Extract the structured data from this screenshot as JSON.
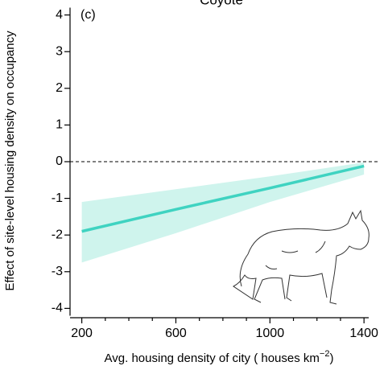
{
  "chart_data": {
    "type": "line",
    "title": "Coyote",
    "panel_label": "(c)",
    "ylabel": "Effect of site-level housing density on occupancy",
    "xlabel": [
      "Avg. housing density of city ( houses  km",
      "−2",
      ")"
    ],
    "x": [
      200,
      600,
      1000,
      1400
    ],
    "series": [
      {
        "color": "#3fd3c1",
        "values": [
          -1.9,
          -1.3,
          -0.72,
          -0.12
        ]
      }
    ],
    "band": {
      "color": "#cff4ed",
      "upper": [
        -1.1,
        -0.75,
        -0.4,
        -0.02
      ],
      "lower": [
        -2.75,
        -1.95,
        -1.1,
        -0.35
      ]
    },
    "reference_line": 0,
    "xlim": [
      150,
      1420
    ],
    "ylim": [
      -4.2,
      4.2
    ],
    "xticks": [
      200,
      600,
      1000,
      1400
    ],
    "xticks_minor": [
      300,
      400,
      500,
      700,
      800,
      900,
      1100,
      1200,
      1300
    ],
    "yticks": [
      -4,
      -3,
      -2,
      -1,
      0,
      1,
      2,
      3,
      4
    ]
  }
}
